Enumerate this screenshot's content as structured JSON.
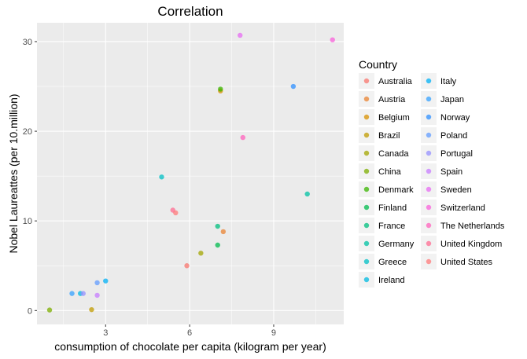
{
  "chart_data": {
    "type": "scatter",
    "title": "Correlation",
    "xlabel": "consumption of chocolate per capita (kilogram per year)",
    "ylabel": "Nobel Laureattes (per 10.million)",
    "xlim": [
      0.55,
      11.5
    ],
    "ylim": [
      -1.55,
      32.1
    ],
    "x_ticks": [
      3,
      6,
      9
    ],
    "y_ticks": [
      0,
      10,
      20,
      30
    ],
    "grid": true,
    "legend": {
      "title": "Country",
      "placement": "right",
      "columns": 2
    },
    "series": [
      {
        "name": "Australia",
        "color": "#F8766D",
        "points": [
          [
            5.9,
            5.0
          ]
        ]
      },
      {
        "name": "Austria",
        "color": "#EA8331",
        "points": [
          [
            7.2,
            8.8
          ]
        ]
      },
      {
        "name": "Belgium",
        "color": "#D89000",
        "points": [
          [
            7.1,
            24.5
          ]
        ]
      },
      {
        "name": "Brazil",
        "color": "#C09B00",
        "points": [
          [
            2.5,
            0.1
          ]
        ]
      },
      {
        "name": "Canada",
        "color": "#A3A500",
        "points": [
          [
            6.4,
            6.4
          ]
        ]
      },
      {
        "name": "China",
        "color": "#7CAE00",
        "points": [
          [
            1.0,
            0.06
          ]
        ]
      },
      {
        "name": "Denmark",
        "color": "#39B600",
        "points": [
          [
            7.1,
            24.7
          ]
        ]
      },
      {
        "name": "Finland",
        "color": "#00BB4E",
        "points": [
          [
            7.0,
            7.3
          ]
        ]
      },
      {
        "name": "France",
        "color": "#00BF7D",
        "points": [
          [
            7.0,
            9.4
          ]
        ]
      },
      {
        "name": "Germany",
        "color": "#00C1A3",
        "points": [
          [
            10.2,
            13.0
          ]
        ]
      },
      {
        "name": "Greece",
        "color": "#00BFC4",
        "points": [
          [
            5.0,
            14.9
          ]
        ]
      },
      {
        "name": "Ireland",
        "color": "#00BAE0",
        "points": [
          [
            2.1,
            1.9
          ]
        ]
      },
      {
        "name": "Italy",
        "color": "#00B0F6",
        "points": [
          [
            3.0,
            3.3
          ]
        ]
      },
      {
        "name": "Japan",
        "color": "#35A2FF",
        "points": [
          [
            1.8,
            1.9
          ]
        ]
      },
      {
        "name": "Norway",
        "color": "#2E8FFF",
        "points": [
          [
            9.7,
            25.0
          ]
        ]
      },
      {
        "name": "Poland",
        "color": "#619CFF",
        "points": [
          [
            2.7,
            3.1
          ]
        ]
      },
      {
        "name": "Portugal",
        "color": "#9590FF",
        "points": [
          [
            2.2,
            1.9
          ]
        ]
      },
      {
        "name": "Spain",
        "color": "#C77CFF",
        "points": [
          [
            2.7,
            1.7
          ]
        ]
      },
      {
        "name": "Sweden",
        "color": "#E76BF3",
        "points": [
          [
            7.8,
            30.7
          ]
        ]
      },
      {
        "name": "Switzerland",
        "color": "#FA62DB",
        "points": [
          [
            11.1,
            30.2
          ]
        ]
      },
      {
        "name": "The Netherlands",
        "color": "#FF62BC",
        "points": [
          [
            7.9,
            19.3
          ]
        ]
      },
      {
        "name": "United Kingdom",
        "color": "#FF6C91",
        "points": [
          [
            5.4,
            11.2
          ]
        ]
      },
      {
        "name": "United States",
        "color": "#FF7A7A",
        "points": [
          [
            5.5,
            10.9
          ]
        ]
      }
    ]
  }
}
